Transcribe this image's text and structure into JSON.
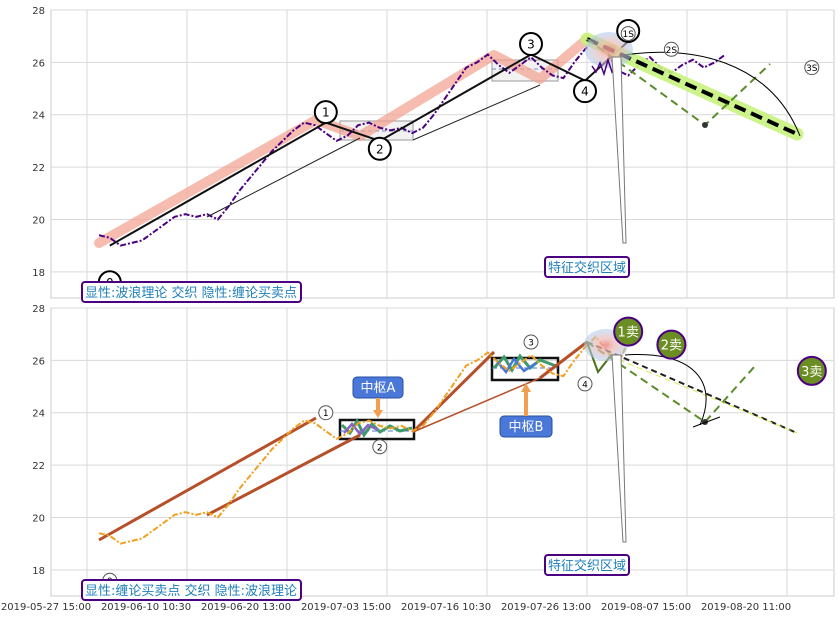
{
  "chart_data": [
    {
      "type": "line",
      "panel": "top",
      "ylim": [
        17,
        28
      ],
      "yticks": [
        18,
        20,
        22,
        24,
        26,
        28
      ],
      "grid": true,
      "x_tick_labels": [
        "2019-05-27 15:00",
        "2019-06-10 10:30",
        "2019-06-20 13:00",
        "2019-07-03 15:00",
        "2019-07-16 10:30",
        "2019-07-26 13:00",
        "2019-08-07 15:00",
        "2019-08-20 11:00"
      ],
      "x_index_range": [
        0,
        78
      ],
      "series": [
        {
          "style": "price",
          "x": [
            0,
            1,
            2,
            3,
            4,
            5,
            6,
            7,
            8,
            9,
            10,
            11,
            12,
            13,
            14,
            15,
            16,
            17,
            18,
            19,
            20,
            21,
            22,
            23,
            24,
            25,
            26,
            27,
            28,
            29,
            30,
            31,
            32,
            33,
            34,
            35,
            36,
            37,
            38,
            39,
            40,
            41,
            42,
            43,
            44,
            45,
            46,
            47,
            48,
            49,
            50,
            51,
            52,
            53,
            54,
            55,
            56,
            57,
            58
          ],
          "y": [
            19.4,
            19.3,
            19.0,
            19.1,
            19.2,
            19.5,
            19.8,
            20.1,
            20.2,
            20.1,
            20.2,
            20.0,
            20.5,
            21.1,
            21.6,
            22.1,
            22.6,
            23.0,
            23.4,
            23.7,
            23.6,
            23.3,
            23.0,
            23.2,
            23.6,
            23.7,
            23.5,
            23.4,
            23.5,
            23.3,
            23.5,
            24.0,
            24.6,
            25.2,
            25.8,
            26.0,
            26.3,
            25.9,
            25.6,
            25.9,
            26.2,
            25.8,
            25.5,
            25.4,
            26.0,
            26.5,
            26.9,
            26.4,
            25.7,
            25.5,
            25.9,
            26.2,
            25.8,
            25.6,
            25.9,
            26.1,
            25.8,
            26.0,
            26.3
          ]
        },
        {
          "style": "wave",
          "x": [
            1,
            21,
            26,
            40,
            45,
            49
          ],
          "y": [
            19.0,
            23.7,
            23.0,
            26.3,
            25.3,
            26.8
          ]
        },
        {
          "style": "projection",
          "x": [
            49,
            61,
            70
          ],
          "y": [
            26.8,
            23.6,
            25.5
          ]
        },
        {
          "style": "trend",
          "x": [
            49,
            71
          ],
          "y": [
            26.8,
            23.2
          ]
        }
      ],
      "wave_labels": [
        {
          "text": "0",
          "x": 1,
          "y": 17.6
        },
        {
          "text": "1",
          "x": 21,
          "y": 24.1
        },
        {
          "text": "2",
          "x": 26,
          "y": 22.7
        },
        {
          "text": "3",
          "x": 40,
          "y": 26.7
        },
        {
          "text": "4",
          "x": 45,
          "y": 24.9
        },
        {
          "text": "5",
          "x": 49,
          "y": 27.2
        },
        {
          "text": "1S",
          "x": 49,
          "y": 27.1
        },
        {
          "text": "2S",
          "x": 53,
          "y": 26.5
        },
        {
          "text": "3S",
          "x": 66,
          "y": 25.8
        }
      ],
      "annotations": [
        "显性:波浪理论 交织 隐性:缠论买卖点",
        "特征交织区域"
      ]
    },
    {
      "type": "line",
      "panel": "bottom",
      "ylim": [
        17,
        28
      ],
      "yticks": [
        18,
        20,
        22,
        24,
        26,
        28
      ],
      "grid": true,
      "x_tick_labels": [
        "2019-05-27 15:00",
        "2019-06-10 10:30",
        "2019-06-20 13:00",
        "2019-07-03 15:00",
        "2019-07-16 10:30",
        "2019-07-26 13:00",
        "2019-08-07 15:00",
        "2019-08-20 11:00"
      ],
      "series": [
        {
          "style": "price",
          "x": [
            0,
            1,
            2,
            3,
            4,
            5,
            6,
            7,
            8,
            9,
            10,
            11,
            12,
            13,
            14,
            15,
            16,
            17,
            18,
            19,
            20,
            21,
            22,
            23,
            24,
            25,
            26,
            27,
            28,
            29,
            30,
            31,
            32,
            33,
            34,
            35,
            36,
            37,
            38,
            39,
            40,
            41,
            42,
            43,
            44,
            45,
            46,
            47,
            48,
            49
          ],
          "y": [
            19.4,
            19.3,
            19.0,
            19.1,
            19.2,
            19.5,
            19.8,
            20.1,
            20.2,
            20.1,
            20.2,
            20.0,
            20.5,
            21.1,
            21.6,
            22.1,
            22.6,
            23.0,
            23.4,
            23.7,
            23.6,
            23.3,
            23.0,
            23.2,
            23.6,
            23.7,
            23.5,
            23.4,
            23.5,
            23.3,
            23.5,
            24.0,
            24.6,
            25.2,
            25.8,
            26.0,
            26.3,
            25.9,
            25.6,
            25.9,
            26.2,
            25.8,
            25.5,
            25.4,
            26.0,
            26.5,
            26.9,
            26.4,
            25.7,
            26.8
          ]
        },
        {
          "style": "projection",
          "x": [
            49,
            61,
            70
          ],
          "y": [
            26.8,
            23.6,
            25.5
          ]
        },
        {
          "style": "trend",
          "x": [
            49,
            71
          ],
          "y": [
            26.8,
            23.2
          ]
        }
      ],
      "wave_labels": [
        {
          "text": "0",
          "x": 1,
          "y": 17.6
        },
        {
          "text": "1",
          "x": 21,
          "y": 24.0
        },
        {
          "text": "2",
          "x": 26,
          "y": 22.7
        },
        {
          "text": "3",
          "x": 40,
          "y": 26.7
        },
        {
          "text": "4",
          "x": 45,
          "y": 25.1
        }
      ],
      "signals": [
        {
          "text": "1卖",
          "x": 49,
          "y": 27.1
        },
        {
          "text": "2卖",
          "x": 53,
          "y": 26.6
        },
        {
          "text": "3卖",
          "x": 66,
          "y": 25.6
        }
      ],
      "pivots": [
        {
          "text": "中枢A",
          "low": 23.0,
          "high": 23.7
        },
        {
          "text": "中枢B",
          "low": 25.3,
          "high": 26.1
        }
      ],
      "annotations": [
        "显性:缠论买卖点 交织 隐性:波浪理论",
        "特征交织区域"
      ]
    }
  ]
}
